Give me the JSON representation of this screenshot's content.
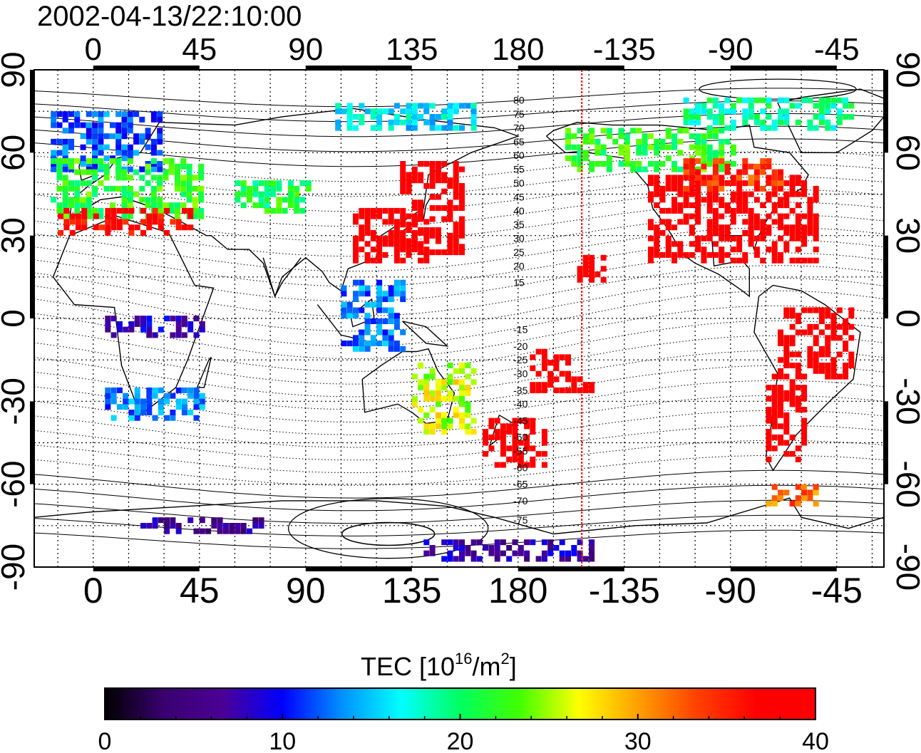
{
  "title": "2002-04-13/22:10:00",
  "colorbar": {
    "label_main": "TEC  [10",
    "label_sup1": "16",
    "label_mid": "/m",
    "label_sup2": "2",
    "label_end": "]",
    "min": 0,
    "max": 40,
    "ticks": [
      "0",
      "10",
      "20",
      "30",
      "40"
    ],
    "colors": [
      "#000000",
      "#3a0070",
      "#4b0096",
      "#0000ff",
      "#0090ff",
      "#00ffff",
      "#00ff60",
      "#40ff00",
      "#ffff00",
      "#ffa000",
      "#ff4000",
      "#ff0000",
      "#ff0000"
    ]
  },
  "map": {
    "lon_ticks": [
      "0",
      "45",
      "90",
      "135",
      "180",
      "-135",
      "-90",
      "-45"
    ],
    "lon_values": [
      0,
      45,
      90,
      135,
      180,
      225,
      270,
      315
    ],
    "lat_ticks": [
      "90",
      "60",
      "30",
      "0",
      "-30",
      "-60",
      "-90"
    ],
    "lat_values": [
      90,
      60,
      30,
      0,
      -30,
      -60,
      -90
    ],
    "lon_range": [
      -25,
      335
    ],
    "lat_range": [
      -90,
      90
    ],
    "terminator_lon": 207,
    "terminator_color": "#ff0000",
    "contour_labels": [
      "80",
      "75",
      "70",
      "65",
      "60",
      "55",
      "50",
      "45",
      "40",
      "35",
      "30",
      "25",
      "20",
      "15",
      "-15",
      "-20",
      "-25",
      "-30",
      "-35",
      "-40",
      "-45",
      "-50",
      "-55",
      "-60",
      "-65",
      "-70",
      "-75"
    ],
    "contour_label_lats": [
      79,
      74,
      69,
      64,
      59,
      54,
      49,
      44,
      39,
      34,
      29,
      24,
      19,
      13,
      -4,
      -10,
      -15,
      -20,
      -26,
      -31,
      -37,
      -43,
      -48,
      -54,
      -60,
      -66,
      -73
    ]
  },
  "tec_regions": [
    {
      "lon": [
        -18,
        28
      ],
      "lat": [
        55,
        75
      ],
      "tec": 12
    },
    {
      "lon": [
        -18,
        45
      ],
      "lat": [
        38,
        58
      ],
      "tec": 22
    },
    {
      "lon": [
        -15,
        40
      ],
      "lat": [
        32,
        40
      ],
      "tec": 37
    },
    {
      "lon": [
        130,
        155
      ],
      "lat": [
        25,
        58
      ],
      "tec": 40
    },
    {
      "lon": [
        110,
        140
      ],
      "lat": [
        22,
        40
      ],
      "tec": 40
    },
    {
      "lon": [
        235,
        305
      ],
      "lat": [
        22,
        52
      ],
      "tec": 40
    },
    {
      "lon": [
        200,
        270
      ],
      "lat": [
        55,
        70
      ],
      "tec": 22
    },
    {
      "lon": [
        250,
        290
      ],
      "lat": [
        48,
        58
      ],
      "tec": 34
    },
    {
      "lon": [
        250,
        320
      ],
      "lat": [
        70,
        80
      ],
      "tec": 19
    },
    {
      "lon": [
        165,
        190
      ],
      "lat": [
        -52,
        -35
      ],
      "tec": 40
    },
    {
      "lon": [
        285,
        300
      ],
      "lat": [
        -50,
        -20
      ],
      "tec": 40
    },
    {
      "lon": [
        290,
        320
      ],
      "lat": [
        -20,
        5
      ],
      "tec": 40
    },
    {
      "lon": [
        285,
        305
      ],
      "lat": [
        -66,
        -60
      ],
      "tec": 32
    },
    {
      "lon": [
        60,
        90
      ],
      "lat": [
        40,
        50
      ],
      "tec": 21
    },
    {
      "lon": [
        135,
        160
      ],
      "lat": [
        -40,
        -15
      ],
      "tec": 26
    },
    {
      "lon": [
        105,
        130
      ],
      "lat": [
        -10,
        15
      ],
      "tec": 13
    },
    {
      "lon": [
        5,
        45
      ],
      "lat": [
        -35,
        -25
      ],
      "tec": 13
    },
    {
      "lon": [
        5,
        45
      ],
      "lat": [
        -5,
        2
      ],
      "tec": 8
    },
    {
      "lon": [
        20,
        70
      ],
      "lat": [
        -76,
        -72
      ],
      "tec": 6
    },
    {
      "lon": [
        140,
        210
      ],
      "lat": [
        -86,
        -80
      ],
      "tec": 7
    },
    {
      "lon": [
        200,
        210
      ],
      "lat": [
        -25,
        -20
      ],
      "tec": 40
    },
    {
      "lon": [
        185,
        200
      ],
      "lat": [
        -25,
        -10
      ],
      "tec": 40
    },
    {
      "lon": [
        205,
        215
      ],
      "lat": [
        15,
        25
      ],
      "tec": 40
    },
    {
      "lon": [
        100,
        160
      ],
      "lat": [
        70,
        78
      ],
      "tec": 16
    }
  ]
}
